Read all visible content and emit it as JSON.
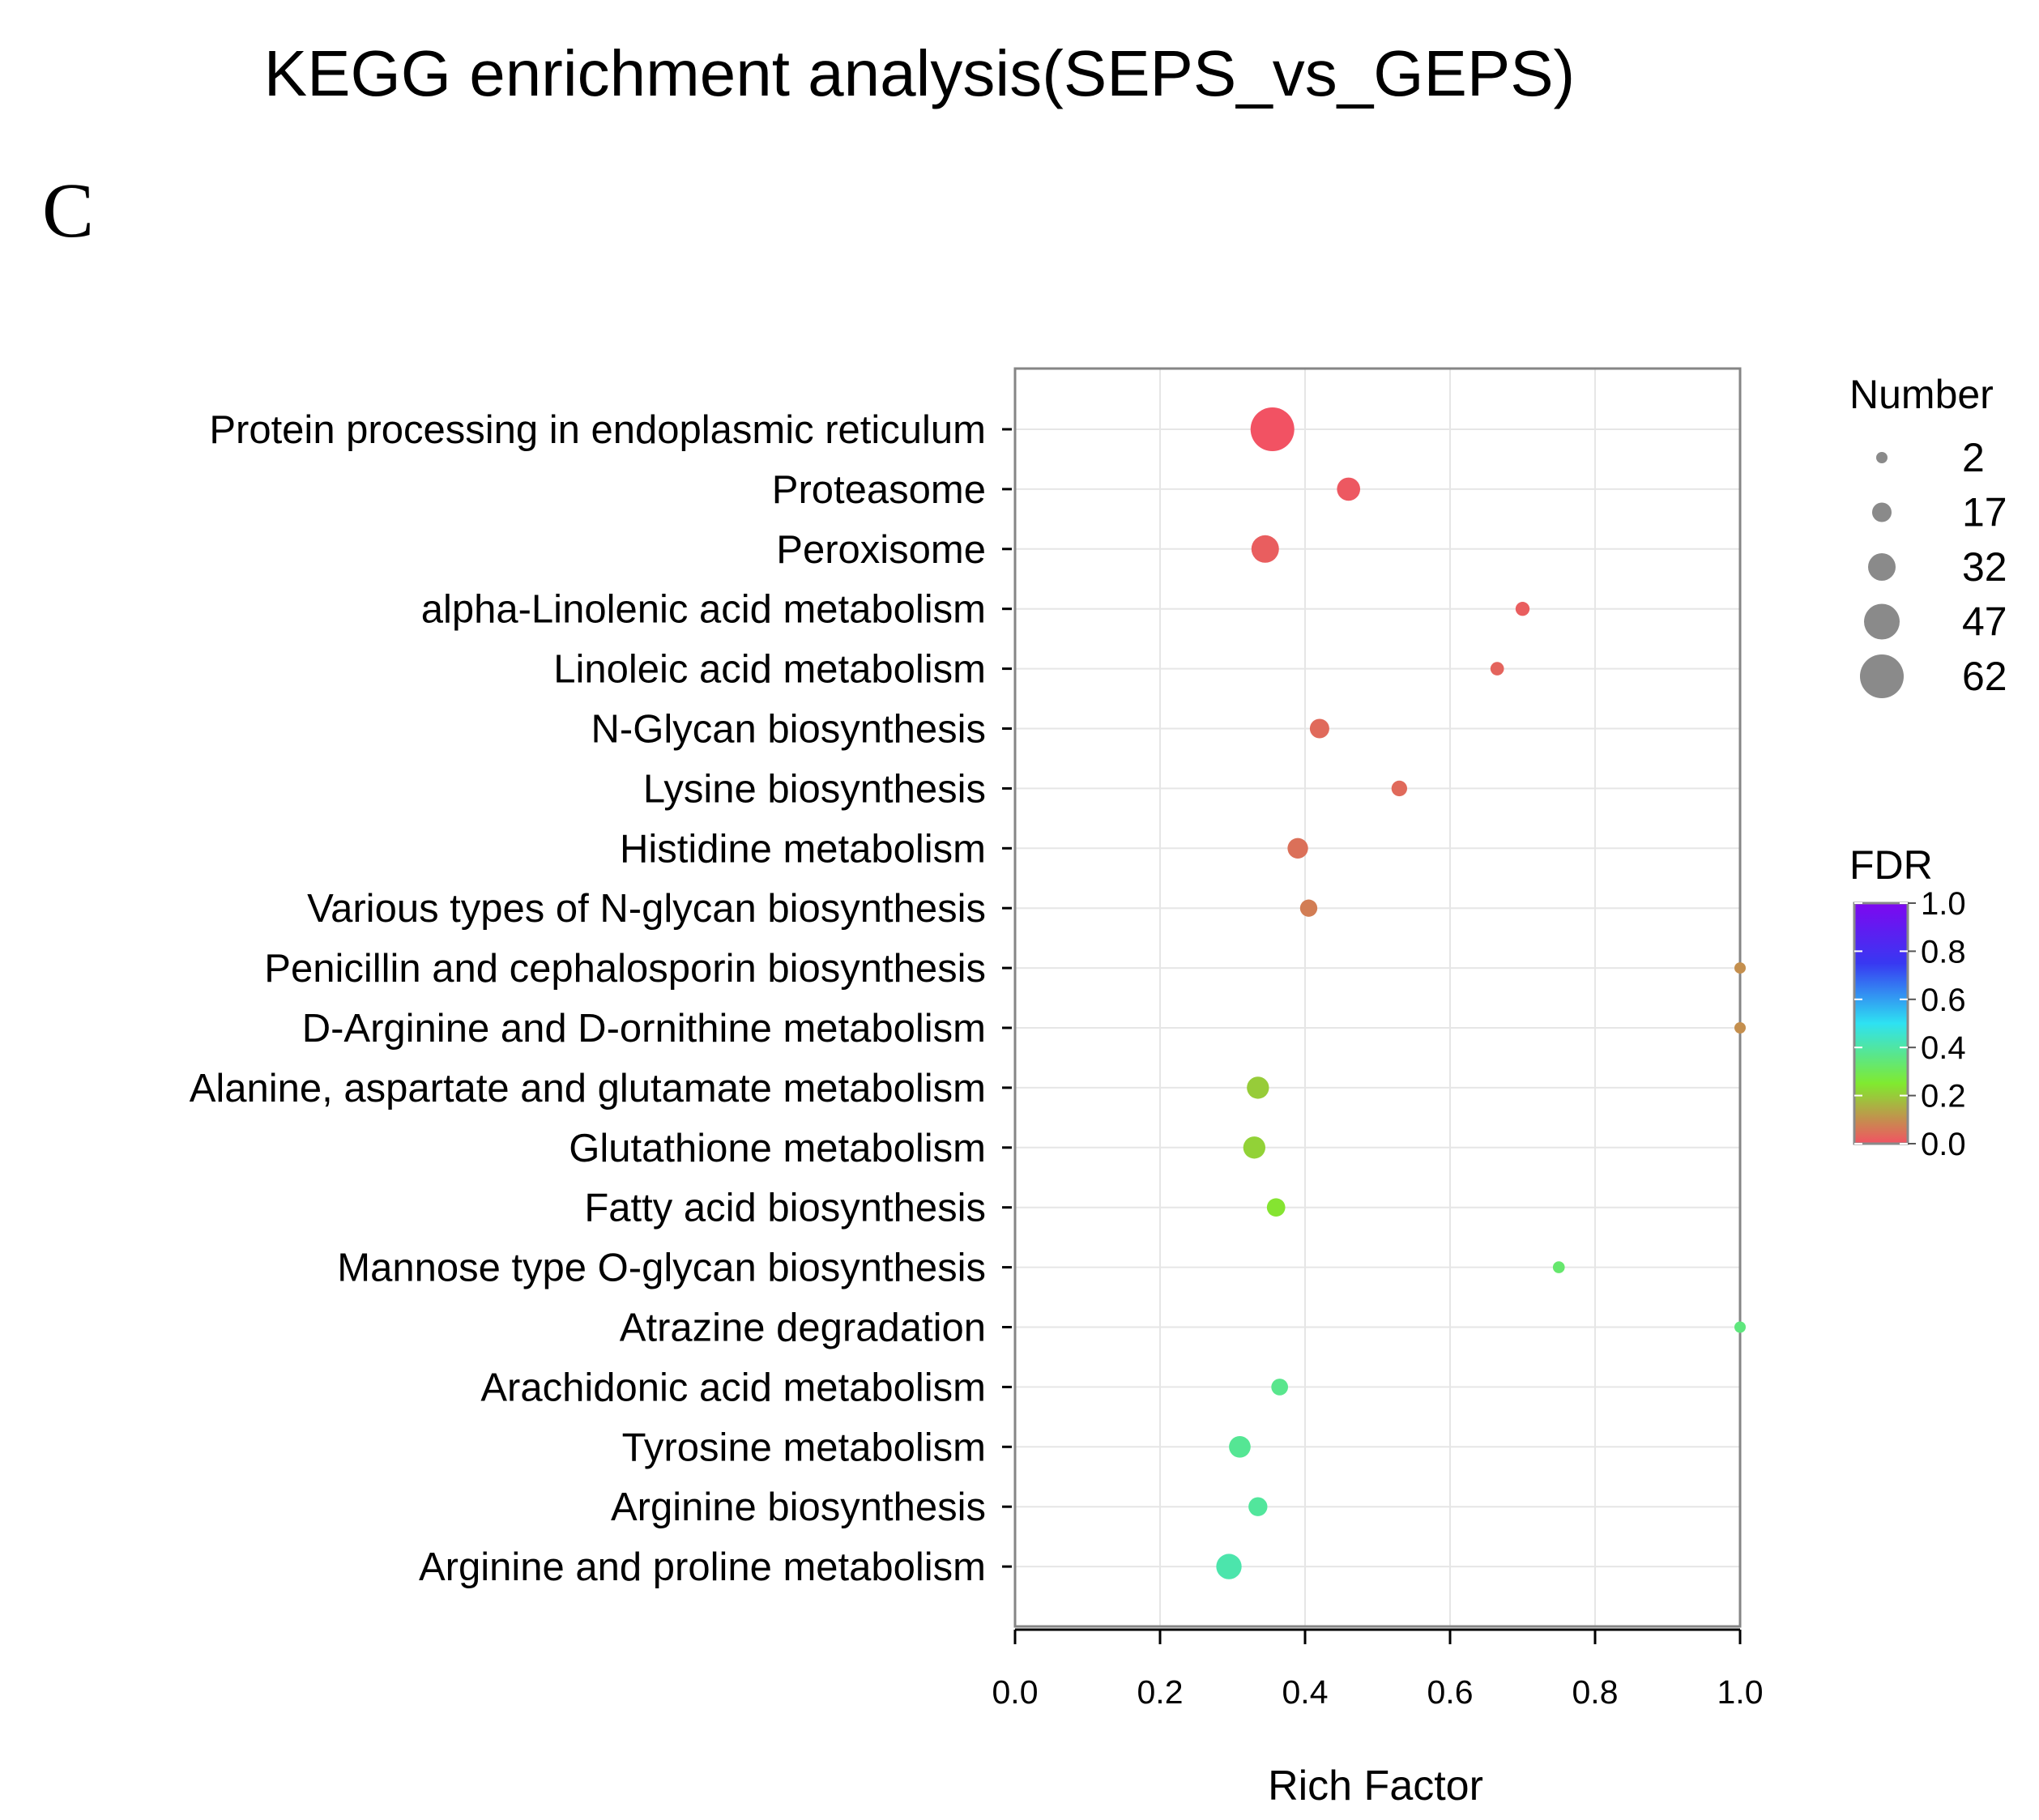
{
  "chart_data": {
    "type": "scatter",
    "title": "KEGG enrichment analysis(SEPS_vs_GEPS)",
    "panel_label": "C",
    "xlabel": "Rich Factor",
    "ylabel": "",
    "xlim": [
      0.0,
      1.0
    ],
    "xticks": [
      "0.0",
      "0.2",
      "0.4",
      "0.6",
      "0.8",
      "1.0"
    ],
    "grid": true,
    "categories": [
      "Protein processing in endoplasmic reticulum",
      "Proteasome",
      "Peroxisome",
      "alpha-Linolenic acid metabolism",
      "Linoleic acid metabolism",
      "N-Glycan biosynthesis",
      "Lysine biosynthesis",
      "Histidine metabolism",
      "Various types of N-glycan biosynthesis",
      "Penicillin and cephalosporin biosynthesis",
      "D-Arginine and D-ornithine metabolism",
      "Alanine, aspartate and glutamate metabolism",
      "Glutathione metabolism",
      "Fatty acid biosynthesis",
      "Mannose type O-glycan biosynthesis",
      "Atrazine degradation",
      "Arachidonic acid metabolism",
      "Tyrosine metabolism",
      "Arginine biosynthesis",
      "Arginine and proline metabolism"
    ],
    "rich_factor": [
      0.355,
      0.46,
      0.345,
      0.7,
      0.665,
      0.42,
      0.53,
      0.39,
      0.405,
      1.0,
      1.0,
      0.335,
      0.33,
      0.36,
      0.75,
      1.0,
      0.365,
      0.31,
      0.335,
      0.295
    ],
    "number": [
      62,
      24,
      32,
      7,
      6,
      17,
      10,
      19,
      13,
      2,
      2,
      22,
      22,
      15,
      3,
      1,
      12,
      21,
      16,
      28
    ],
    "fdr": [
      0.0,
      0.01,
      0.02,
      0.02,
      0.03,
      0.04,
      0.04,
      0.05,
      0.07,
      0.1,
      0.1,
      0.2,
      0.21,
      0.24,
      0.33,
      0.35,
      0.37,
      0.38,
      0.39,
      0.41
    ],
    "size_legend": {
      "title": "Number",
      "values": [
        2,
        17,
        32,
        47,
        62
      ]
    },
    "color_legend": {
      "title": "FDR",
      "ticks": [
        "1.0",
        "0.8",
        "0.6",
        "0.4",
        "0.2",
        "0.0"
      ],
      "range": [
        0.0,
        1.0
      ],
      "colors": [
        "#f25263",
        "#80ea2f",
        "#2ee2f2",
        "#3838f2",
        "#7e07f0"
      ]
    },
    "frame_color": "#858585",
    "grid_color": "#e6e6e6"
  }
}
